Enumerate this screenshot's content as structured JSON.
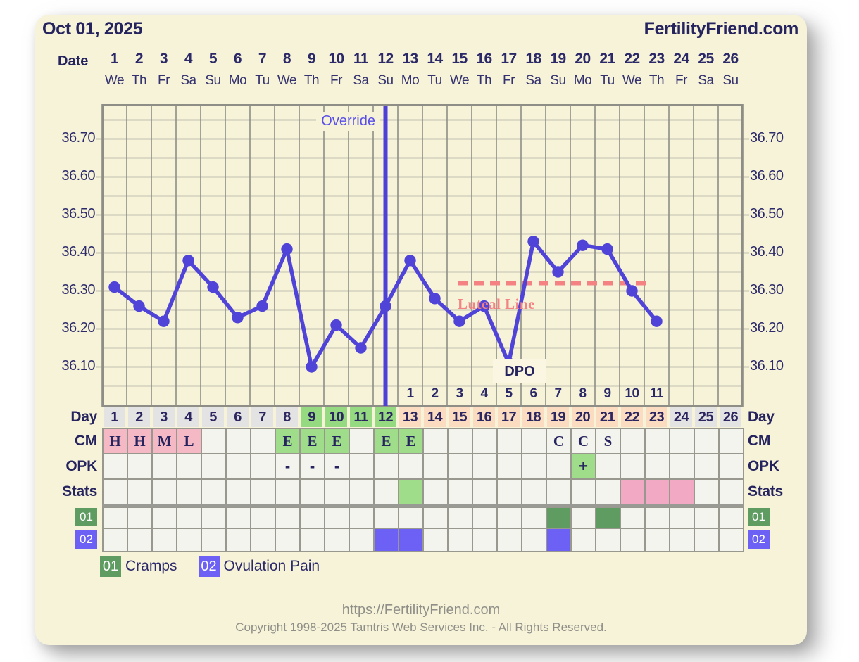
{
  "header": {
    "title": "Oct 01, 2025",
    "brand": "FertilityFriend.com"
  },
  "calendar": {
    "label": "Date",
    "dates": [
      1,
      2,
      3,
      4,
      5,
      6,
      7,
      8,
      9,
      10,
      11,
      12,
      13,
      14,
      15,
      16,
      17,
      18,
      19,
      20,
      21,
      22,
      23,
      24,
      25,
      26
    ],
    "weekdays": [
      "We",
      "Th",
      "Fr",
      "Sa",
      "Su",
      "Mo",
      "Tu",
      "We",
      "Th",
      "Fr",
      "Sa",
      "Su",
      "Mo",
      "Tu",
      "We",
      "Th",
      "Fr",
      "Sa",
      "Su",
      "Mo",
      "Tu",
      "We",
      "Th",
      "Fr",
      "Sa",
      "Su"
    ]
  },
  "chart_data": {
    "type": "line",
    "x_days": [
      1,
      2,
      3,
      4,
      5,
      6,
      7,
      8,
      9,
      10,
      11,
      12,
      13,
      14,
      15,
      16,
      17,
      18,
      19,
      20,
      21,
      22,
      23
    ],
    "temps": [
      36.31,
      36.26,
      36.22,
      36.38,
      36.31,
      36.23,
      36.26,
      36.41,
      36.1,
      36.21,
      36.15,
      36.26,
      36.38,
      36.28,
      36.22,
      36.26,
      36.11,
      36.43,
      36.35,
      36.42,
      36.41,
      36.3,
      36.22
    ],
    "y_ticks": [
      "36.70",
      "36.60",
      "36.50",
      "36.40",
      "36.30",
      "36.20",
      "36.10"
    ],
    "ylim": [
      36.0,
      36.79
    ],
    "days_total": 26,
    "grid": true,
    "override": {
      "label": "Override",
      "day": 12
    },
    "luteal_line": {
      "label": "Luteal Line",
      "temp": 36.32,
      "from_day": 15,
      "to_day": 23
    },
    "dpo": {
      "label": "DPO",
      "start_day": 13,
      "numbers": [
        1,
        2,
        3,
        4,
        5,
        6,
        7,
        8,
        9,
        10,
        11
      ]
    }
  },
  "table": {
    "day": {
      "label": "Day",
      "values": [
        1,
        2,
        3,
        4,
        5,
        6,
        7,
        8,
        9,
        10,
        11,
        12,
        13,
        14,
        15,
        16,
        17,
        18,
        19,
        20,
        21,
        22,
        23,
        24,
        25,
        26
      ],
      "color_groups": [
        {
          "from": 1,
          "to": 8,
          "color": "gray"
        },
        {
          "from": 9,
          "to": 12,
          "color": "green"
        },
        {
          "from": 13,
          "to": 23,
          "color": "peach"
        },
        {
          "from": 24,
          "to": 26,
          "color": "gray"
        }
      ]
    },
    "cm": {
      "label": "CM",
      "cells": {
        "1": [
          "H",
          "pink"
        ],
        "2": [
          "H",
          "pink"
        ],
        "3": [
          "M",
          "pink"
        ],
        "4": [
          "L",
          "pink"
        ],
        "8": [
          "E",
          "green"
        ],
        "9": [
          "E",
          "green"
        ],
        "10": [
          "E",
          "green"
        ],
        "12": [
          "E",
          "green"
        ],
        "13": [
          "E",
          "green"
        ],
        "19": [
          "C",
          "plain"
        ],
        "20": [
          "C",
          "plain"
        ],
        "21": [
          "S",
          "plain"
        ]
      }
    },
    "opk": {
      "label": "OPK",
      "cells": {
        "8": [
          "-",
          "plain"
        ],
        "9": [
          "-",
          "plain"
        ],
        "10": [
          "-",
          "plain"
        ],
        "20": [
          "+",
          "green"
        ]
      }
    },
    "stats": {
      "label": "Stats",
      "cells": {
        "13": [
          "",
          "green"
        ],
        "22": [
          "",
          "statspink"
        ],
        "23": [
          "",
          "statspink"
        ],
        "24": [
          "",
          "statspink"
        ]
      }
    },
    "symptom_rows": [
      {
        "code": "01",
        "days": [
          19,
          21
        ],
        "color": "#5e9c61"
      },
      {
        "code": "02",
        "days": [
          12,
          13,
          19
        ],
        "color": "#6c60f5"
      }
    ]
  },
  "legend": {
    "items": [
      {
        "code": "01",
        "label": "Cramps",
        "color": "#5e9c61"
      },
      {
        "code": "02",
        "label": "Ovulation Pain",
        "color": "#6c60f5"
      }
    ]
  },
  "footer": {
    "url": "https://FertilityFriend.com",
    "copyright": "Copyright 1998-2025 Tamtris Web Services Inc. - All Rights Reserved."
  },
  "colors": {
    "card_bg": "#f7f3d9",
    "navy": "#26245e",
    "temp_line": "#5044d8",
    "override_line": "#4c40d6",
    "luteal": "#f58282",
    "grid": "#8e8e86",
    "cell_bg": "#f4f4ee",
    "cell_border": "#98988e",
    "day_gray": "#e3e3e3",
    "day_green": "#95da81",
    "day_peach": "#fcdcc1",
    "cm_pink": "#f5b9c5",
    "cell_green": "#9fdd8b",
    "stats_pink": "#f2a9c4",
    "symptom_green": "#5e9c61",
    "symptom_blue": "#6c60f5",
    "footer_gray": "#8f8f88"
  }
}
